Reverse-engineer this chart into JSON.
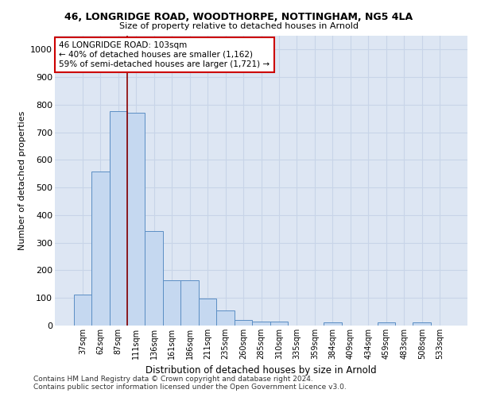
{
  "title1": "46, LONGRIDGE ROAD, WOODTHORPE, NOTTINGHAM, NG5 4LA",
  "title2": "Size of property relative to detached houses in Arnold",
  "xlabel": "Distribution of detached houses by size in Arnold",
  "ylabel": "Number of detached properties",
  "categories": [
    "37sqm",
    "62sqm",
    "87sqm",
    "111sqm",
    "136sqm",
    "161sqm",
    "186sqm",
    "211sqm",
    "235sqm",
    "260sqm",
    "285sqm",
    "310sqm",
    "335sqm",
    "359sqm",
    "384sqm",
    "409sqm",
    "434sqm",
    "459sqm",
    "483sqm",
    "508sqm",
    "533sqm"
  ],
  "values": [
    112,
    558,
    778,
    770,
    343,
    165,
    165,
    98,
    55,
    20,
    15,
    15,
    0,
    0,
    12,
    0,
    0,
    12,
    0,
    12,
    0
  ],
  "bar_color": "#c5d8f0",
  "bar_edge_color": "#5b8ec4",
  "vline_color": "#8b0000",
  "annotation_line1": "46 LONGRIDGE ROAD: 103sqm",
  "annotation_line2": "← 40% of detached houses are smaller (1,162)",
  "annotation_line3": "59% of semi-detached houses are larger (1,721) →",
  "annotation_box_color": "white",
  "annotation_box_edge": "#cc0000",
  "ylim": [
    0,
    1050
  ],
  "yticks": [
    0,
    100,
    200,
    300,
    400,
    500,
    600,
    700,
    800,
    900,
    1000
  ],
  "background_color": "#dde6f3",
  "grid_color": "#c8d4e8",
  "footnote": "Contains HM Land Registry data © Crown copyright and database right 2024.\nContains public sector information licensed under the Open Government Licence v3.0."
}
